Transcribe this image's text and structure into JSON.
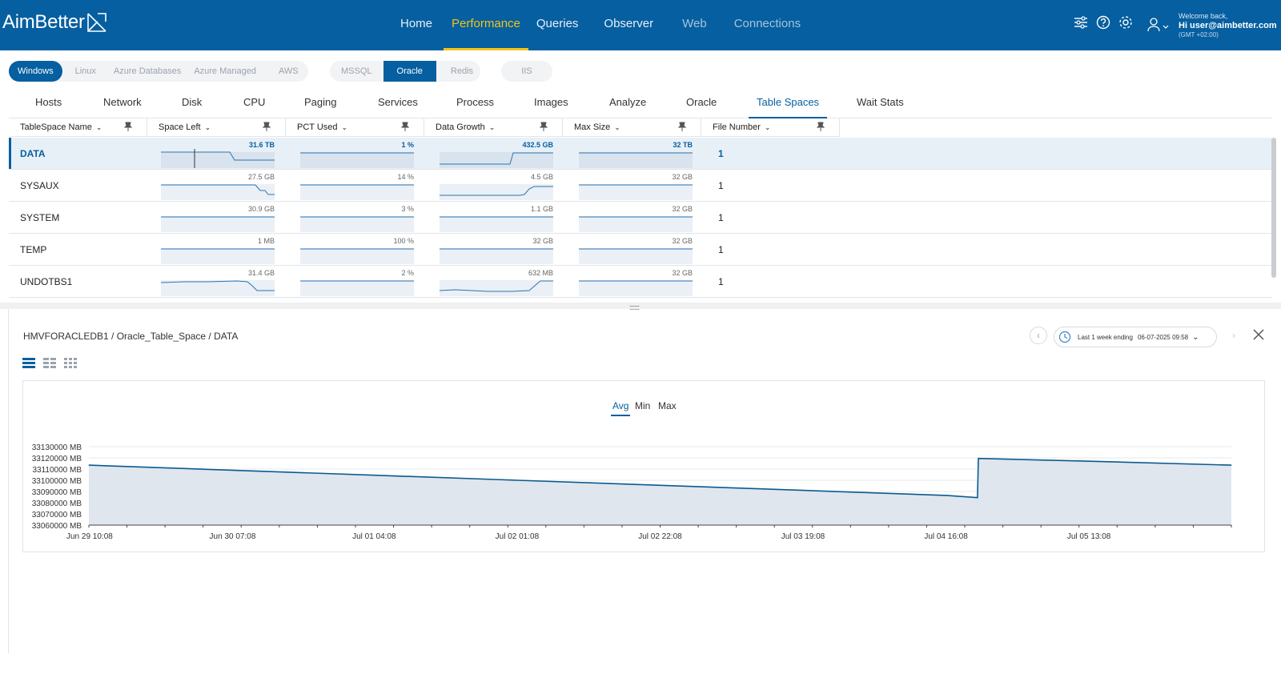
{
  "brand": {
    "name": "AimBetter"
  },
  "nav": [
    {
      "label": "Home",
      "state": "normal"
    },
    {
      "label": "Performance",
      "state": "active"
    },
    {
      "label": "Queries",
      "state": "normal"
    },
    {
      "label": "Observer",
      "state": "normal"
    },
    {
      "label": "Web",
      "state": "dim"
    },
    {
      "label": "Connections",
      "state": "dim"
    }
  ],
  "user": {
    "welcome": "Welcome back,",
    "name": "Hi user@aimbetter.com",
    "tz": "(GMT +02:00)"
  },
  "platforms": {
    "os": [
      "Windows",
      "Linux",
      "Azure Databases",
      "Azure Managed",
      "AWS"
    ],
    "db": [
      "MSSQL",
      "Oracle",
      "Redis"
    ],
    "web": [
      "IIS"
    ],
    "active_os": "Windows",
    "active_db": "Oracle"
  },
  "tabs": [
    "Hosts",
    "Network",
    "Disk",
    "CPU",
    "Paging",
    "Services",
    "Process",
    "Images",
    "Analyze",
    "Oracle",
    "Table Spaces",
    "Wait Stats"
  ],
  "active_tab": "Table Spaces",
  "grid": {
    "columns": [
      "TableSpace Name",
      "Space Left",
      "PCT Used",
      "Data Growth",
      "Max Size",
      "File Number"
    ],
    "rows": [
      {
        "name": "DATA",
        "space_left": "31.6 TB",
        "pct_used": "1 %",
        "data_growth": "432.5 GB",
        "max_size": "32 TB",
        "file_number": "1",
        "selected": true
      },
      {
        "name": "SYSAUX",
        "space_left": "27.5 GB",
        "pct_used": "14 %",
        "data_growth": "4.5 GB",
        "max_size": "32 GB",
        "file_number": "1"
      },
      {
        "name": "SYSTEM",
        "space_left": "30.9 GB",
        "pct_used": "3 %",
        "data_growth": "1.1 GB",
        "max_size": "32 GB",
        "file_number": "1"
      },
      {
        "name": "TEMP",
        "space_left": "1 MB",
        "pct_used": "100 %",
        "data_growth": "32 GB",
        "max_size": "32 GB",
        "file_number": "1"
      },
      {
        "name": "UNDOTBS1",
        "space_left": "31.4 GB",
        "pct_used": "2 %",
        "data_growth": "632 MB",
        "max_size": "32 GB",
        "file_number": "1"
      }
    ]
  },
  "detail": {
    "breadcrumb": "HMVFORACLEDB1 / Oracle_Table_Space / DATA",
    "range_label": "Last 1 week ending",
    "range_end": "06-07-2025 09:58"
  },
  "chart_tabs": [
    "Avg",
    "Min",
    "Max"
  ],
  "chart_data": {
    "type": "area",
    "title": "",
    "xlabel": "",
    "ylabel": "",
    "ylim": [
      33060000,
      33130000
    ],
    "y_ticks": [
      "33130000 MB",
      "33120000 MB",
      "33110000 MB",
      "33100000 MB",
      "33090000 MB",
      "33080000 MB",
      "33070000 MB",
      "33060000 MB"
    ],
    "x_ticks": [
      "Jun 29 10:08",
      "Jun 30 07:08",
      "Jul 01 04:08",
      "Jul 02 01:08",
      "Jul 02 22:08",
      "Jul 03 19:08",
      "Jul 04 16:08",
      "Jul 05 13:08"
    ],
    "series": [
      {
        "name": "Avg",
        "points": [
          {
            "x": "Jun 29 10:08",
            "y": 33113500
          },
          {
            "x": "Jun 30 07:08",
            "y": 33109000
          },
          {
            "x": "Jul 01 04:08",
            "y": 33104500
          },
          {
            "x": "Jul 02 01:08",
            "y": 33100000
          },
          {
            "x": "Jul 02 22:08",
            "y": 33095500
          },
          {
            "x": "Jul 03 19:08",
            "y": 33091000
          },
          {
            "x": "Jul 04 16:08",
            "y": 33086500
          },
          {
            "x": "Jul 04 20:40",
            "y": 33084500
          },
          {
            "x": "Jul 04 20:48",
            "y": 33119500
          },
          {
            "x": "Jul 05 13:08",
            "y": 33117000
          },
          {
            "x": "Jul 06 09:58",
            "y": 33113500
          }
        ]
      }
    ],
    "grid": true
  },
  "colors": {
    "header": "#055fa0",
    "accent": "#f3c419",
    "series": "#0b5a8f",
    "area": "#dfe6ee"
  }
}
